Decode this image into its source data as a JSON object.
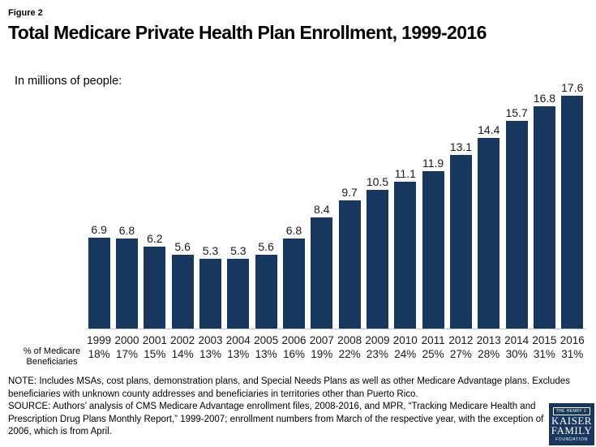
{
  "figure_label": "Figure 2",
  "title": "Total Medicare Private Health Plan Enrollment, 1999-2016",
  "subtitle": "In millions of people:",
  "chart_data": {
    "type": "bar",
    "categories": [
      "1999",
      "2000",
      "2001",
      "2002",
      "2003",
      "2004",
      "2005",
      "2006",
      "2007",
      "2008",
      "2009",
      "2010",
      "2011",
      "2012",
      "2013",
      "2014",
      "2015",
      "2016"
    ],
    "values": [
      6.9,
      6.8,
      6.2,
      5.6,
      5.3,
      5.3,
      5.6,
      6.8,
      8.4,
      9.7,
      10.5,
      11.1,
      11.9,
      13.1,
      14.4,
      15.7,
      16.8,
      17.6
    ],
    "pct_of_beneficiaries": [
      "18%",
      "17%",
      "15%",
      "14%",
      "13%",
      "13%",
      "13%",
      "16%",
      "19%",
      "22%",
      "23%",
      "24%",
      "25%",
      "27%",
      "28%",
      "30%",
      "31%",
      "31%"
    ],
    "title": "Total Medicare Private Health Plan Enrollment, 1999-2016",
    "xlabel": "",
    "ylabel": "In millions of people",
    "ylim": [
      0,
      18
    ],
    "grid": false,
    "legend": false,
    "value_labels_shown": true,
    "bar_color": "#17375E",
    "axis_line_color": "#c6c6c6",
    "axis_row_label_line1": "% of Medicare",
    "axis_row_label_line2": "Beneficiaries"
  },
  "notes": {
    "note": "NOTE:  Includes MSAs, cost plans, demonstration plans, and Special Needs Plans as well as other Medicare Advantage plans.  Excludes beneficiaries with unknown county addresses and beneficiaries in territories other than Puerto Rico.",
    "source": "SOURCE:  Authors’ analysis of CMS Medicare Advantage enrollment files, 2008-2016, and MPR, “Tracking Medicare Health and Prescription Drug Plans Monthly Report,” 1999-2007; enrollment numbers from March of the respective year, with the exception of 2006, which is from April."
  },
  "logo": {
    "line1": "THE HENRY J.",
    "line2": "KAISER",
    "line3": "FAMILY",
    "line4": "FOUNDATION",
    "bg_color": "#17375E"
  }
}
